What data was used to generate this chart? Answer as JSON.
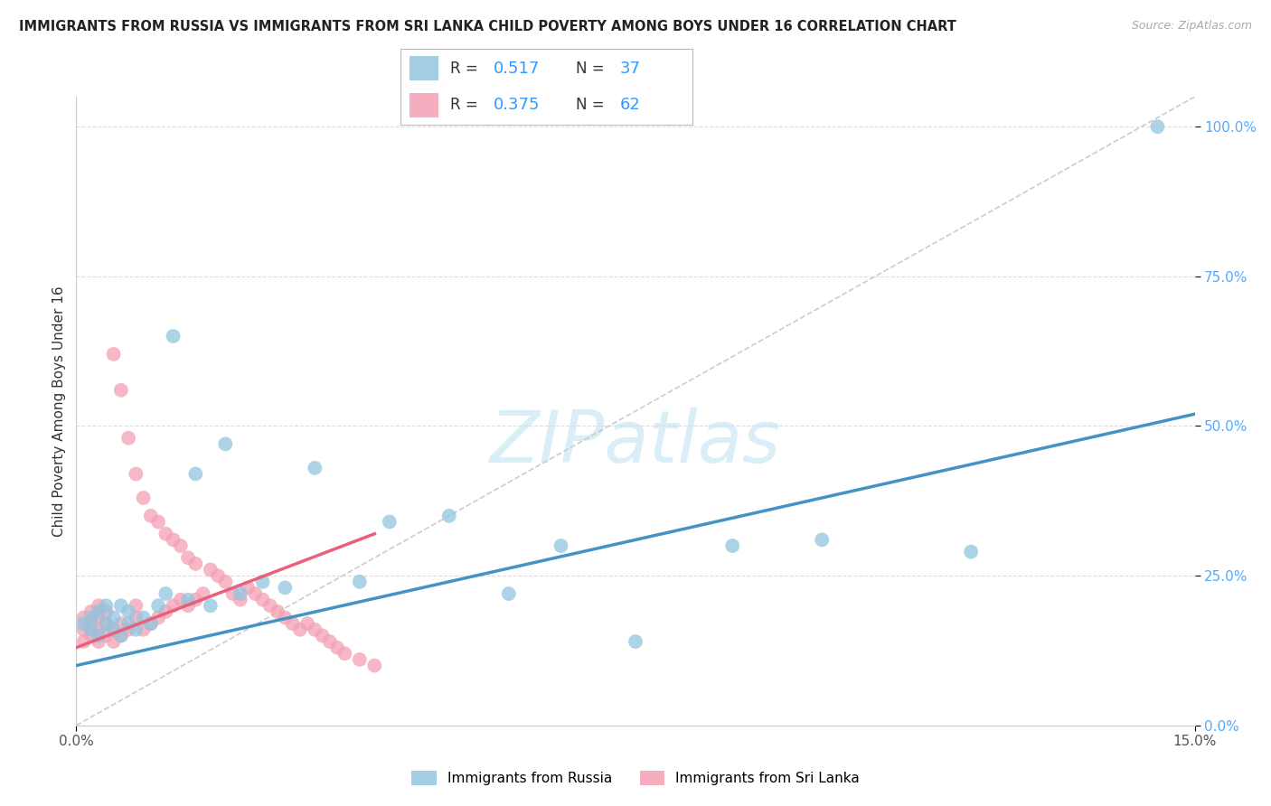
{
  "title": "IMMIGRANTS FROM RUSSIA VS IMMIGRANTS FROM SRI LANKA CHILD POVERTY AMONG BOYS UNDER 16 CORRELATION CHART",
  "source": "Source: ZipAtlas.com",
  "ylabel_label": "Child Poverty Among Boys Under 16",
  "xlim": [
    0.0,
    0.15
  ],
  "ylim": [
    0.0,
    1.05
  ],
  "russia_color": "#92c5de",
  "srilanka_color": "#f4a0b5",
  "russia_line_color": "#4393c3",
  "srilanka_line_color": "#e8607a",
  "diag_color": "#cccccc",
  "watermark_color": "#daeef8",
  "legend_R_russia": "0.517",
  "legend_N_russia": "37",
  "legend_R_srilanka": "0.375",
  "legend_N_srilanka": "62",
  "ytick_color": "#55aaff",
  "xtick_color": "#555555",
  "background_color": "#ffffff",
  "grid_color": "#dddddd",
  "russia_x": [
    0.001,
    0.002,
    0.002,
    0.003,
    0.003,
    0.004,
    0.004,
    0.005,
    0.005,
    0.006,
    0.006,
    0.007,
    0.007,
    0.008,
    0.009,
    0.01,
    0.011,
    0.012,
    0.013,
    0.015,
    0.016,
    0.018,
    0.02,
    0.022,
    0.025,
    0.028,
    0.032,
    0.038,
    0.042,
    0.05,
    0.058,
    0.065,
    0.075,
    0.088,
    0.1,
    0.12,
    0.145
  ],
  "russia_y": [
    0.17,
    0.16,
    0.18,
    0.15,
    0.19,
    0.17,
    0.2,
    0.16,
    0.18,
    0.15,
    0.2,
    0.17,
    0.19,
    0.16,
    0.18,
    0.17,
    0.2,
    0.22,
    0.65,
    0.21,
    0.42,
    0.2,
    0.47,
    0.22,
    0.24,
    0.23,
    0.43,
    0.24,
    0.34,
    0.35,
    0.22,
    0.3,
    0.14,
    0.3,
    0.31,
    0.29,
    1.0
  ],
  "srilanka_x": [
    0.001,
    0.001,
    0.001,
    0.002,
    0.002,
    0.002,
    0.003,
    0.003,
    0.003,
    0.003,
    0.004,
    0.004,
    0.004,
    0.005,
    0.005,
    0.005,
    0.006,
    0.006,
    0.006,
    0.007,
    0.007,
    0.008,
    0.008,
    0.008,
    0.009,
    0.009,
    0.01,
    0.01,
    0.011,
    0.011,
    0.012,
    0.012,
    0.013,
    0.013,
    0.014,
    0.014,
    0.015,
    0.015,
    0.016,
    0.016,
    0.017,
    0.018,
    0.019,
    0.02,
    0.021,
    0.022,
    0.023,
    0.024,
    0.025,
    0.026,
    0.027,
    0.028,
    0.029,
    0.03,
    0.031,
    0.032,
    0.033,
    0.034,
    0.035,
    0.036,
    0.038,
    0.04
  ],
  "srilanka_y": [
    0.14,
    0.16,
    0.18,
    0.15,
    0.17,
    0.19,
    0.14,
    0.16,
    0.18,
    0.2,
    0.15,
    0.17,
    0.19,
    0.14,
    0.16,
    0.62,
    0.15,
    0.17,
    0.56,
    0.16,
    0.48,
    0.18,
    0.2,
    0.42,
    0.16,
    0.38,
    0.17,
    0.35,
    0.18,
    0.34,
    0.19,
    0.32,
    0.2,
    0.31,
    0.21,
    0.3,
    0.2,
    0.28,
    0.21,
    0.27,
    0.22,
    0.26,
    0.25,
    0.24,
    0.22,
    0.21,
    0.23,
    0.22,
    0.21,
    0.2,
    0.19,
    0.18,
    0.17,
    0.16,
    0.17,
    0.16,
    0.15,
    0.14,
    0.13,
    0.12,
    0.11,
    0.1
  ],
  "russia_line_x": [
    0.0,
    0.15
  ],
  "russia_line_y": [
    0.1,
    0.52
  ],
  "srilanka_line_x": [
    0.0,
    0.04
  ],
  "srilanka_line_y": [
    0.13,
    0.32
  ]
}
